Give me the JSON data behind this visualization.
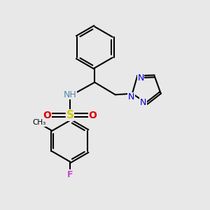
{
  "bg_color": "#e8e8e8",
  "bond_color": "#000000",
  "bond_width": 1.5,
  "N_color": "#0000cc",
  "NH_color": "#5588aa",
  "O_color": "#dd0000",
  "S_color": "#cccc00",
  "F_color": "#cc44cc",
  "figsize": [
    3.0,
    3.0
  ],
  "dpi": 100,
  "xlim": [
    0,
    10
  ],
  "ylim": [
    0,
    10
  ]
}
